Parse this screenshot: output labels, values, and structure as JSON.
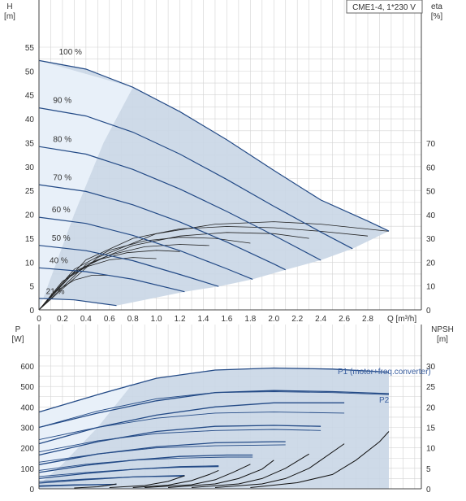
{
  "chart_data": [
    {
      "type": "line",
      "title": "CME1-4, 1*230 V",
      "x_label": "Q [m³/h]",
      "y_label_left": "H",
      "y_unit_left": "[m]",
      "y_label_right": "eta",
      "y_unit_right": "[%]",
      "xlim": [
        0,
        3.0
      ],
      "ylim_left": [
        0,
        56
      ],
      "ylim_right": [
        0,
        80
      ],
      "x_ticks": [
        "0",
        "0.2",
        "0.4",
        "0.6",
        "0.8",
        "1.0",
        "1.2",
        "1.4",
        "1.6",
        "1.8",
        "2.0",
        "2.2",
        "2.4",
        "2.6",
        "2.8"
      ],
      "y_ticks_left": [
        "0",
        "5",
        "10",
        "15",
        "20",
        "25",
        "30",
        "35",
        "40",
        "45",
        "50",
        "55"
      ],
      "y_ticks_right": [
        "0",
        "10",
        "20",
        "30",
        "40",
        "50",
        "60",
        "70"
      ],
      "grid": true,
      "speed_curves": [
        {
          "name": "100 %",
          "x": [
            0,
            0.4,
            0.8,
            1.2,
            1.6,
            2.0,
            2.4,
            2.8,
            2.98
          ],
          "y": [
            52.2,
            50.4,
            46.6,
            41.5,
            35.6,
            29.2,
            23.0,
            18.6,
            16.5
          ]
        },
        {
          "name": "90 %",
          "x": [
            0,
            0.4,
            0.8,
            1.2,
            1.6,
            2.0,
            2.4,
            2.67
          ],
          "y": [
            42.3,
            40.6,
            37.2,
            32.6,
            27.3,
            21.7,
            16.3,
            12.8
          ]
        },
        {
          "name": "80 %",
          "x": [
            0,
            0.4,
            0.8,
            1.2,
            1.6,
            2.0,
            2.4
          ],
          "y": [
            34.2,
            32.6,
            29.4,
            25.3,
            20.6,
            15.6,
            10.4
          ]
        },
        {
          "name": "70 %",
          "x": [
            0,
            0.4,
            0.8,
            1.2,
            1.6,
            2.0,
            2.1
          ],
          "y": [
            26.2,
            24.8,
            22.0,
            18.4,
            14.2,
            9.6,
            8.4
          ]
        },
        {
          "name": "60 %",
          "x": [
            0,
            0.4,
            0.8,
            1.2,
            1.6,
            1.82
          ],
          "y": [
            19.4,
            18.1,
            15.6,
            12.4,
            8.6,
            6.4
          ]
        },
        {
          "name": "50 %",
          "x": [
            0,
            0.4,
            0.8,
            1.2,
            1.53
          ],
          "y": [
            13.5,
            12.4,
            10.3,
            7.4,
            4.9
          ]
        },
        {
          "name": "40 %",
          "x": [
            0,
            0.4,
            0.8,
            1.24
          ],
          "y": [
            8.8,
            8.0,
            6.4,
            3.8
          ]
        },
        {
          "name": "21 %",
          "x": [
            0,
            0.3,
            0.66
          ],
          "y": [
            2.4,
            2.1,
            0.9
          ]
        }
      ],
      "labels": [
        "100 %",
        "90 %",
        "80 %",
        "70 %",
        "60 %",
        "50 %",
        "40 %",
        "21 %"
      ],
      "eta_curves": [
        {
          "x": [
            0,
            0.5,
            1.0,
            1.5,
            2.0,
            2.4,
            2.98
          ],
          "y": [
            0,
            22,
            32,
            36,
            37,
            36,
            33
          ]
        },
        {
          "x": [
            0,
            0.4,
            0.8,
            1.2,
            1.6,
            2.0,
            2.4,
            2.8
          ],
          "y": [
            0,
            21,
            30,
            34,
            35,
            34.5,
            33,
            31
          ]
        },
        {
          "x": [
            0,
            0.4,
            0.8,
            1.2,
            1.6,
            2.0,
            2.3
          ],
          "y": [
            0,
            19,
            27,
            31,
            32.5,
            32,
            30
          ]
        },
        {
          "x": [
            0,
            0.3,
            0.6,
            0.9,
            1.2,
            1.5,
            1.8
          ],
          "y": [
            0,
            17,
            25,
            29,
            30.5,
            30,
            28
          ]
        },
        {
          "x": [
            0,
            0.3,
            0.6,
            0.9,
            1.2,
            1.45
          ],
          "y": [
            0,
            16,
            23,
            26.5,
            27.5,
            27
          ]
        },
        {
          "x": [
            0,
            0.25,
            0.5,
            0.75,
            1.0,
            1.2
          ],
          "y": [
            0,
            14,
            21,
            24,
            25,
            24.5
          ]
        },
        {
          "x": [
            0,
            0.2,
            0.4,
            0.6,
            0.8,
            1.0
          ],
          "y": [
            0,
            12,
            18,
            21,
            22,
            21.5
          ]
        },
        {
          "x": [
            0,
            0.15,
            0.3,
            0.45,
            0.6
          ],
          "y": [
            0,
            8,
            12.5,
            14.5,
            14.5
          ]
        }
      ]
    },
    {
      "type": "line",
      "y_label_left": "P",
      "y_unit_left": "[W]",
      "y_label_right": "NPSH",
      "y_unit_right": "[m]",
      "xlim": [
        0,
        3.0
      ],
      "ylim_left": [
        0,
        650
      ],
      "ylim_right": [
        0,
        32.5
      ],
      "y_ticks_left": [
        "0",
        "100",
        "200",
        "300",
        "400",
        "500",
        "600"
      ],
      "y_ticks_right": [
        "0",
        "5",
        "10",
        "15",
        "20",
        "25",
        "30"
      ],
      "grid": true,
      "series_labels": [
        "P1 (motor+freq.converter)",
        "P2"
      ],
      "p1_curves": [
        {
          "x": [
            0,
            0.5,
            1.0,
            1.5,
            2.0,
            2.5,
            2.98
          ],
          "y": [
            375,
            460,
            540,
            580,
            590,
            585,
            570
          ]
        },
        {
          "x": [
            0,
            0.5,
            1.0,
            1.5,
            2.0,
            2.5,
            2.98
          ],
          "y": [
            300,
            370,
            430,
            470,
            480,
            475,
            465
          ]
        },
        {
          "x": [
            0,
            0.5,
            1.0,
            1.5,
            2.0,
            2.6
          ],
          "y": [
            220,
            300,
            360,
            400,
            420,
            420
          ]
        },
        {
          "x": [
            0,
            0.5,
            1.0,
            1.5,
            2.0,
            2.4
          ],
          "y": [
            165,
            230,
            280,
            305,
            310,
            305
          ]
        },
        {
          "x": [
            0,
            0.5,
            1.0,
            1.5,
            2.0,
            2.1
          ],
          "y": [
            118,
            170,
            205,
            225,
            230,
            230
          ]
        },
        {
          "x": [
            0,
            0.4,
            0.8,
            1.2,
            1.6,
            1.82
          ],
          "y": [
            80,
            115,
            140,
            158,
            165,
            165
          ]
        },
        {
          "x": [
            0,
            0.4,
            0.8,
            1.2,
            1.53
          ],
          "y": [
            50,
            75,
            95,
            108,
            112
          ]
        },
        {
          "x": [
            0,
            0.4,
            0.8,
            1.24
          ],
          "y": [
            28,
            45,
            58,
            65
          ]
        },
        {
          "x": [
            0,
            0.3,
            0.66
          ],
          "y": [
            12,
            18,
            22
          ]
        }
      ],
      "p2_curves": [
        {
          "x": [
            0,
            0.5,
            1.0,
            1.5,
            2.0,
            2.5,
            2.98
          ],
          "y": [
            300,
            380,
            440,
            470,
            475,
            470,
            460
          ]
        },
        {
          "x": [
            0,
            0.5,
            1.0,
            1.5,
            2.0,
            2.6
          ],
          "y": [
            240,
            300,
            345,
            370,
            375,
            370
          ]
        },
        {
          "x": [
            0,
            0.5,
            1.0,
            1.5,
            2.0,
            2.4
          ],
          "y": [
            180,
            235,
            270,
            285,
            290,
            285
          ]
        },
        {
          "x": [
            0,
            0.5,
            1.0,
            1.5,
            2.1
          ],
          "y": [
            130,
            170,
            200,
            210,
            215
          ]
        },
        {
          "x": [
            0,
            0.4,
            0.8,
            1.2,
            1.6,
            1.82
          ],
          "y": [
            90,
            120,
            140,
            150,
            155,
            155
          ]
        },
        {
          "x": [
            0,
            0.4,
            0.8,
            1.2,
            1.53
          ],
          "y": [
            60,
            80,
            95,
            105,
            108
          ]
        },
        {
          "x": [
            0,
            0.4,
            0.8,
            1.24
          ],
          "y": [
            35,
            48,
            58,
            62
          ]
        },
        {
          "x": [
            0,
            0.3,
            0.66
          ],
          "y": [
            15,
            20,
            22
          ]
        }
      ],
      "npsh_curves": [
        {
          "x": [
            1.8,
            2.2,
            2.5,
            2.7,
            2.9,
            2.98
          ],
          "y": [
            0.3,
            1.5,
            3.5,
            7,
            11.5,
            14
          ]
        },
        {
          "x": [
            1.5,
            1.9,
            2.1,
            2.3,
            2.4,
            2.6
          ],
          "y": [
            0.3,
            1.2,
            2.5,
            5,
            7,
            11
          ]
        },
        {
          "x": [
            1.3,
            1.7,
            1.9,
            2.1,
            2.3
          ],
          "y": [
            0.3,
            1.2,
            2.5,
            5,
            8.5
          ]
        },
        {
          "x": [
            1.1,
            1.5,
            1.7,
            1.9,
            2.0
          ],
          "y": [
            0.3,
            1.2,
            2.5,
            4.8,
            7
          ]
        },
        {
          "x": [
            0.9,
            1.3,
            1.5,
            1.65,
            1.8
          ],
          "y": [
            0.3,
            1.0,
            2.2,
            4,
            6
          ]
        },
        {
          "x": [
            0.8,
            1.1,
            1.3,
            1.45,
            1.53
          ],
          "y": [
            0.3,
            0.9,
            2,
            3.5,
            4.5
          ]
        },
        {
          "x": [
            0.6,
            0.9,
            1.1,
            1.2,
            1.24
          ],
          "y": [
            0.3,
            0.8,
            1.8,
            2.8,
            3.2
          ]
        },
        {
          "x": [
            0.3,
            0.5,
            0.6,
            0.66
          ],
          "y": [
            0.2,
            0.5,
            0.9,
            1.2
          ]
        }
      ]
    }
  ]
}
